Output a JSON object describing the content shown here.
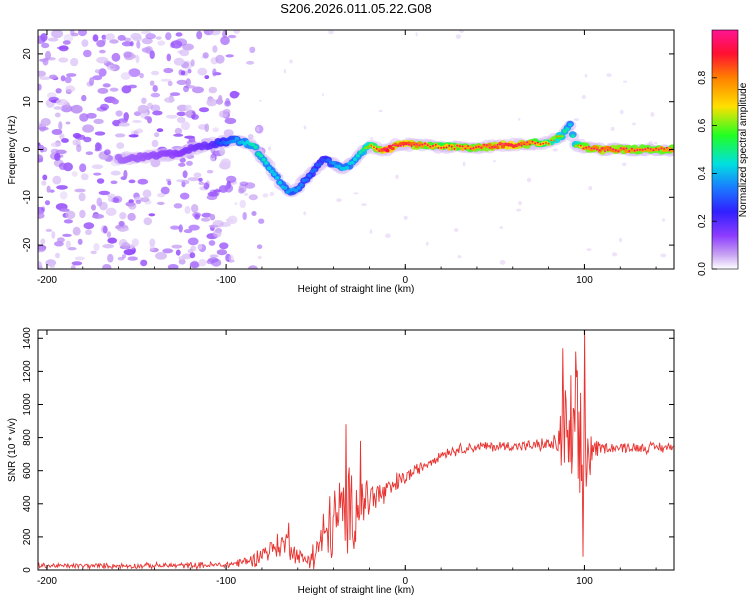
{
  "figure": {
    "title": "S206.2026.011.05.22.G08"
  },
  "colors": {
    "snr_line": "#e8322f",
    "axes": "#000000",
    "colormap": [
      "#ffffff",
      "#c8a3f2",
      "#8c3cff",
      "#3020ff",
      "#1a7bff",
      "#00e0e0",
      "#22ff22",
      "#ffe000",
      "#ff8000",
      "#ff1030",
      "#ff1493"
    ]
  },
  "colorbar": {
    "label": "Normalized spectral amplitude",
    "ticks": [
      "0.0",
      "0.2",
      "0.4",
      "0.6",
      "0.8"
    ]
  },
  "chart_data": [
    {
      "type": "heatmap",
      "name": "spectrogram",
      "title": "S206.2026.011.05.22.G08",
      "xlabel": "Height of straight line (km)",
      "ylabel": "Frequency (Hz)",
      "xlim": [
        -205,
        150
      ],
      "ylim": [
        -25,
        25
      ],
      "xticks": [
        -200,
        -100,
        0,
        100
      ],
      "xtick_labels": [
        "-200",
        "-100",
        "0",
        "100"
      ],
      "yticks": [
        -20,
        -10,
        0,
        10,
        20
      ],
      "ytick_labels": [
        "-20",
        "-10",
        "0",
        "10",
        "20"
      ],
      "colorbar_label": "Normalized spectral amplitude",
      "colorbar_range": [
        0.0,
        1.0
      ],
      "ridge": {
        "x": [
          -160,
          -130,
          -110,
          -95,
          -85,
          -80,
          -75,
          -70,
          -65,
          -60,
          -55,
          -50,
          -45,
          -40,
          -35,
          -30,
          -25,
          -20,
          -15,
          -10,
          -5,
          0,
          10,
          20,
          40,
          60,
          80,
          88,
          92,
          95,
          100,
          110,
          130,
          150
        ],
        "y": [
          -2,
          -1,
          1,
          2,
          1,
          -2,
          -4,
          -7,
          -9,
          -8,
          -6,
          -4,
          -2,
          -3,
          -4,
          -3,
          -1,
          1,
          0,
          0,
          1,
          1,
          1,
          0.5,
          0.5,
          1,
          1.5,
          3,
          5,
          1,
          0.5,
          0,
          0,
          0
        ],
        "amplitude": [
          0.2,
          0.25,
          0.3,
          0.45,
          0.55,
          0.55,
          0.5,
          0.5,
          0.45,
          0.45,
          0.4,
          0.4,
          0.35,
          0.45,
          0.5,
          0.5,
          0.55,
          0.65,
          0.8,
          0.95,
          0.85,
          0.9,
          0.8,
          0.75,
          0.8,
          0.9,
          0.7,
          0.6,
          0.5,
          0.6,
          0.8,
          0.85,
          0.8,
          0.8
        ]
      },
      "noise_region_x": [
        -205,
        -95
      ]
    },
    {
      "type": "line",
      "name": "snr",
      "xlabel": "Height of straight line (km)",
      "ylabel": "SNR (10 * v/v)",
      "xlim": [
        -205,
        150
      ],
      "ylim": [
        0,
        1450
      ],
      "xticks": [
        -200,
        -100,
        0,
        100
      ],
      "xtick_labels": [
        "-200",
        "-100",
        "0",
        "100"
      ],
      "yticks": [
        0,
        200,
        400,
        600,
        800,
        1000,
        1200,
        1400
      ],
      "ytick_labels": [
        "0",
        "200",
        "400",
        "600",
        "800",
        "1000",
        "1200",
        "1400"
      ],
      "envelope": {
        "x": [
          -205,
          -150,
          -100,
          -85,
          -80,
          -70,
          -65,
          -60,
          -55,
          -50,
          -45,
          -40,
          -35,
          -30,
          -25,
          -20,
          -15,
          -10,
          -5,
          0,
          10,
          20,
          30,
          40,
          50,
          60,
          70,
          80,
          85,
          88,
          90,
          92,
          95,
          98,
          100,
          102,
          105,
          110,
          120,
          130,
          150
        ],
        "mean": [
          25,
          25,
          30,
          60,
          100,
          150,
          160,
          80,
          60,
          110,
          200,
          300,
          330,
          350,
          400,
          440,
          450,
          470,
          520,
          560,
          630,
          700,
          730,
          745,
          745,
          750,
          750,
          760,
          760,
          780,
          700,
          760,
          800,
          600,
          700,
          700,
          730,
          740,
          740,
          740,
          740
        ],
        "spread": [
          20,
          20,
          25,
          50,
          70,
          100,
          110,
          60,
          60,
          120,
          220,
          300,
          300,
          330,
          250,
          180,
          130,
          100,
          80,
          60,
          40,
          40,
          40,
          40,
          40,
          40,
          40,
          50,
          80,
          400,
          600,
          500,
          500,
          700,
          600,
          300,
          80,
          40,
          40,
          40,
          40
        ]
      },
      "peaks": [
        {
          "x": -65,
          "y": 285
        },
        {
          "x": -33,
          "y": 880
        },
        {
          "x": -25,
          "y": 780
        },
        {
          "x": 88,
          "y": 1340
        },
        {
          "x": 95,
          "y": 1320
        },
        {
          "x": 100,
          "y": 1450
        },
        {
          "x": 99,
          "y": 80
        }
      ]
    }
  ]
}
